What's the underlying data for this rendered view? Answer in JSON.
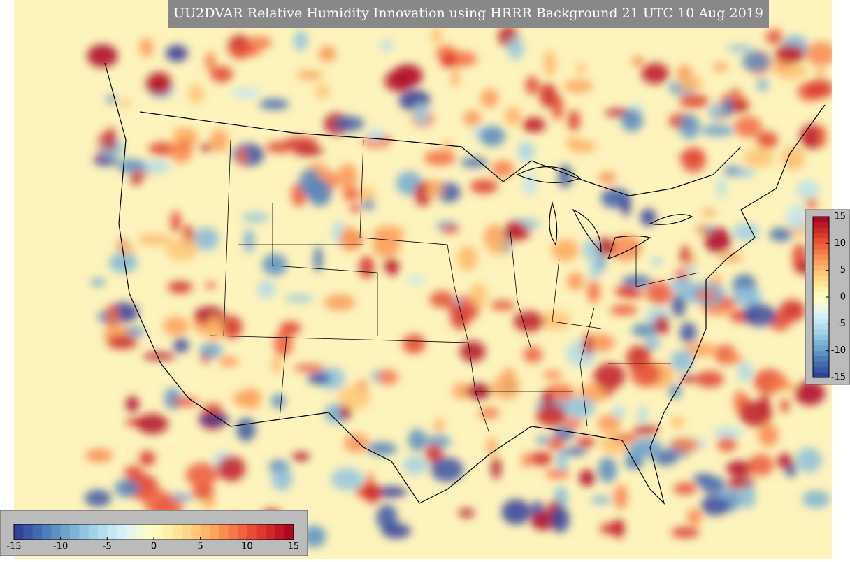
{
  "title": "UU2DVAR Relative Humidity Innovation using HRRR Background 21 UTC 10 Aug 2019",
  "horizontal_colorbar": {
    "lim": [
      -15,
      15
    ],
    "ticks": [
      -15,
      -10,
      -5,
      0,
      5,
      10,
      15
    ]
  },
  "vertical_colorbar": {
    "lim": [
      -15,
      15
    ],
    "ticks": [
      -15,
      -10,
      -5,
      0,
      5,
      10,
      15
    ]
  }
}
